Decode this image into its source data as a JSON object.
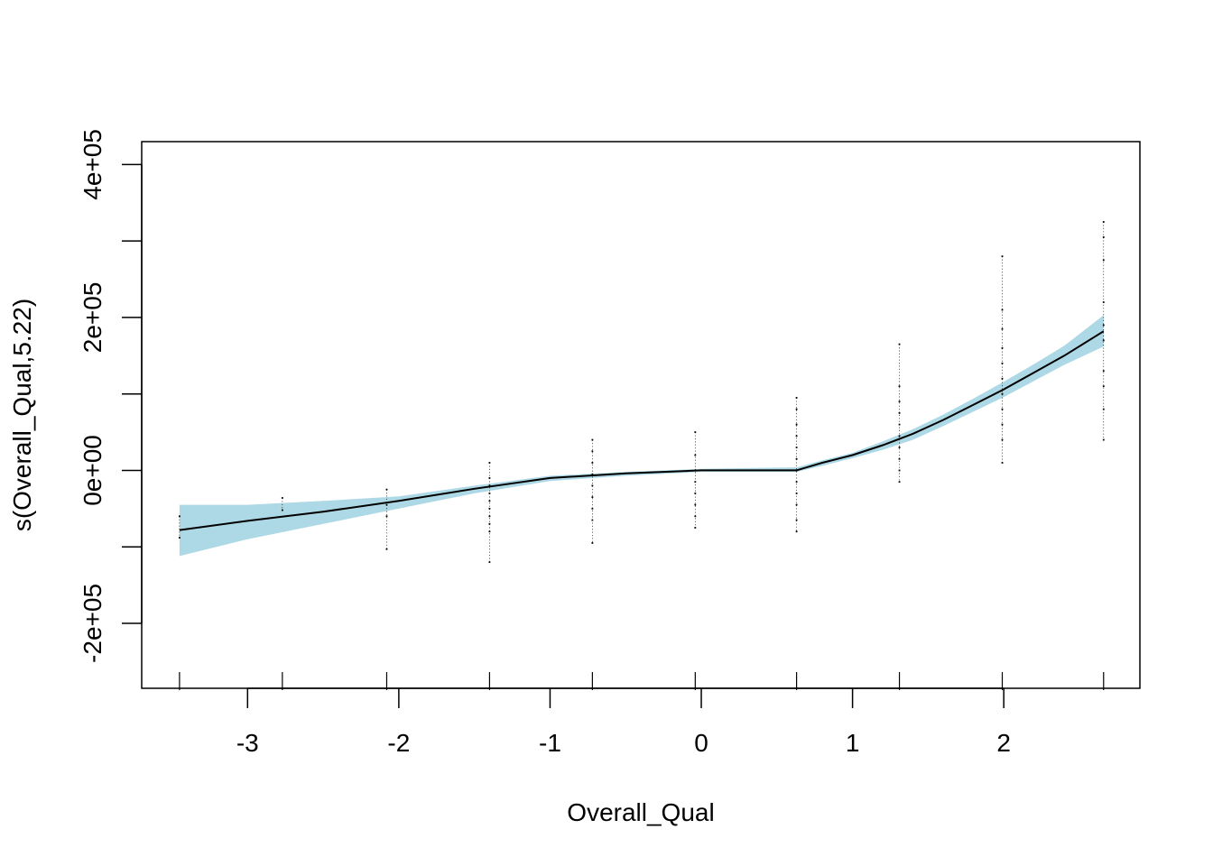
{
  "chart_data": {
    "type": "line",
    "xlabel": "Overall_Qual",
    "ylabel": "s(Overall_Qual,5.22)",
    "xlim": [
      -3.7,
      2.9
    ],
    "ylim": [
      -285000,
      430000
    ],
    "x_ticks": [
      -3,
      -2,
      -1,
      0,
      1,
      2
    ],
    "x_tick_labels": [
      "-3",
      "-2",
      "-1",
      "0",
      "1",
      "2"
    ],
    "y_ticks": [
      -200000,
      -100000,
      0,
      100000,
      200000,
      300000,
      400000
    ],
    "y_tick_labels": [
      "-2e+05",
      "0e+00",
      "2e+05",
      "4e+05"
    ],
    "y_labeled_ticks": [
      -200000,
      0,
      200000,
      400000
    ],
    "grid": false,
    "legend": "none",
    "colors": {
      "band": "#add8e6",
      "line": "#000000",
      "points": "#000000"
    },
    "series": [
      {
        "role": "smooth",
        "x": [
          -3.45,
          -3.0,
          -2.5,
          -2.0,
          -1.5,
          -1.0,
          -0.5,
          0.0,
          0.3,
          0.63,
          0.8,
          1.0,
          1.2,
          1.4,
          1.6,
          1.8,
          2.0,
          2.2,
          2.4,
          2.66
        ],
        "values": [
          -78000,
          -66000,
          -54000,
          -40000,
          -24000,
          -10000,
          -4000,
          0,
          0,
          0,
          10000,
          20000,
          33000,
          48000,
          66000,
          86000,
          106000,
          128000,
          150000,
          182000
        ]
      },
      {
        "role": "band-upper",
        "x": [
          -3.45,
          -3.0,
          -2.5,
          -2.0,
          -1.5,
          -1.0,
          -0.5,
          0.0,
          0.3,
          0.63,
          0.8,
          1.0,
          1.2,
          1.4,
          1.6,
          1.8,
          2.0,
          2.2,
          2.4,
          2.66
        ],
        "values": [
          -45000,
          -45000,
          -40000,
          -34000,
          -20000,
          -7000,
          -2000,
          2000,
          3000,
          4000,
          13000,
          23000,
          38000,
          54000,
          73000,
          94000,
          116000,
          139000,
          163000,
          203000
        ]
      },
      {
        "role": "band-lower",
        "x": [
          -3.45,
          -3.0,
          -2.5,
          -2.0,
          -1.5,
          -1.0,
          -0.5,
          0.0,
          0.3,
          0.63,
          0.8,
          1.0,
          1.2,
          1.4,
          1.6,
          1.8,
          2.0,
          2.2,
          2.4,
          2.66
        ],
        "values": [
          -112000,
          -90000,
          -70000,
          -50000,
          -30000,
          -14000,
          -7000,
          -2000,
          -2000,
          -2000,
          6000,
          16000,
          27000,
          40000,
          58000,
          77000,
          96000,
          117000,
          138000,
          162000
        ]
      }
    ],
    "rug_x": [
      -3.45,
      -2.77,
      -2.08,
      -1.4,
      -0.72,
      -0.04,
      0.63,
      1.31,
      1.99,
      2.66
    ],
    "points": [
      {
        "x": -3.45,
        "y": [
          -60000,
          -88000
        ]
      },
      {
        "x": -2.77,
        "y": [
          -36000,
          -52000
        ]
      },
      {
        "x": -2.08,
        "y": [
          -25000,
          -45000,
          -60000,
          -103000
        ]
      },
      {
        "x": -1.4,
        "y": [
          10000,
          -10000,
          -20000,
          -30000,
          -40000,
          -50000,
          -60000,
          -70000,
          -80000,
          -120000
        ]
      },
      {
        "x": -0.72,
        "y": [
          40000,
          25000,
          10000,
          -5000,
          -20000,
          -35000,
          -50000,
          -65000,
          -95000
        ]
      },
      {
        "x": -0.04,
        "y": [
          50000,
          20000,
          0,
          -15000,
          -30000,
          -45000,
          -60000,
          -75000
        ]
      },
      {
        "x": 0.63,
        "y": [
          95000,
          80000,
          60000,
          45000,
          30000,
          15000,
          0,
          -15000,
          -30000,
          -45000,
          -65000,
          -80000
        ]
      },
      {
        "x": 1.31,
        "y": [
          165000,
          110000,
          90000,
          75000,
          60000,
          45000,
          30000,
          15000,
          0,
          -15000
        ]
      },
      {
        "x": 1.99,
        "y": [
          280000,
          210000,
          185000,
          160000,
          140000,
          120000,
          100000,
          80000,
          60000,
          40000,
          10000
        ]
      },
      {
        "x": 2.66,
        "y": [
          325000,
          305000,
          275000,
          220000,
          190000,
          170000,
          130000,
          110000,
          80000,
          40000
        ]
      }
    ]
  }
}
